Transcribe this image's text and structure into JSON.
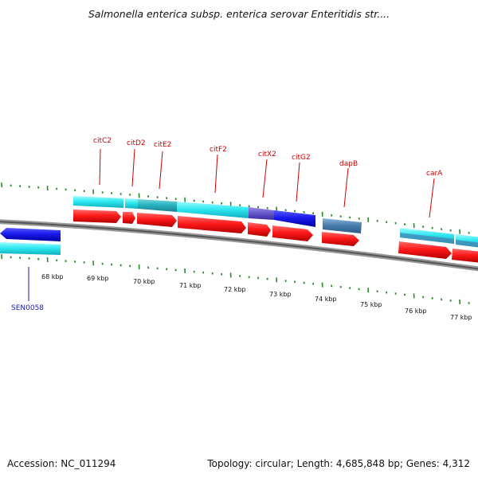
{
  "title": "Salmonella enterica subsp. enterica serovar Enteritidis str....",
  "footer": {
    "accession": "Accession: NC_011294",
    "summary": "Topology: circular; Length: 4,685,848 bp; Genes: 4,312"
  },
  "colors": {
    "red_label": "#cc0000",
    "blue_label": "#1a1aaa",
    "gene_red": "#ff1a1a",
    "gene_blue": "#1a1aee",
    "gene_cyan": "#2ee8f0",
    "gene_steel": "#4a7fb0",
    "tick_green": "#2a8a2a"
  },
  "scale_labels": [
    "68 kbp",
    "69 kbp",
    "70 kbp",
    "71 kbp",
    "72 kbp",
    "73 kbp",
    "74 kbp",
    "75 kbp",
    "76 kbp",
    "77 kbp"
  ],
  "gene_labels": [
    {
      "text": "citC2",
      "color": "red"
    },
    {
      "text": "citD2",
      "color": "red"
    },
    {
      "text": "citE2",
      "color": "red"
    },
    {
      "text": "citF2",
      "color": "red"
    },
    {
      "text": "citX2",
      "color": "red"
    },
    {
      "text": "citG2",
      "color": "red"
    },
    {
      "text": "dapB",
      "color": "red"
    },
    {
      "text": "carA",
      "color": "red"
    },
    {
      "text": "SEN0058",
      "color": "blue"
    }
  ]
}
